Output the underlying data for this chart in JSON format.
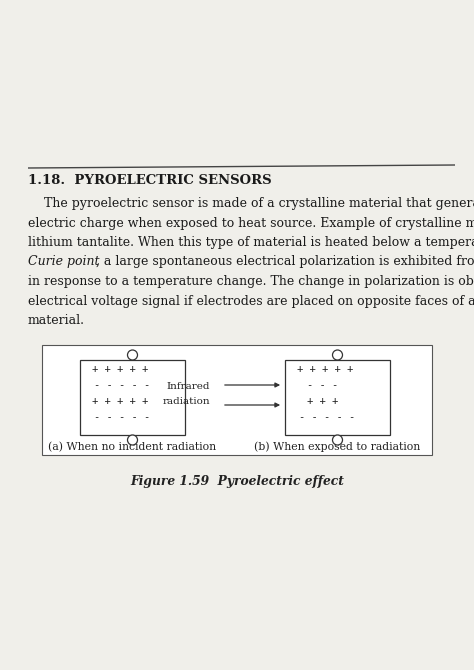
{
  "section_number": "1.18.",
  "section_title": "PYROELECTRIC SENSORS",
  "line1": "    The pyroelectric sensor is made of a crystalline material that generates a surface",
  "line2": "electric charge when exposed to heat source. Example of crystalline material is",
  "line3": "lithium tantalite. When this type of material is heated below a temperature known as",
  "line4_italic": "Curie point",
  "line4_rest": ", a large spontaneous electrical polarization is exhibited from the material",
  "line5": "in response to a temperature change. The change in polarization is observed as an",
  "line6": "electrical voltage signal if electrodes are placed on opposite faces of a thin slice of the",
  "line7": "material.",
  "fig_label_a": "(a) When no incident radiation",
  "fig_label_b": "(b) When exposed to radiation",
  "infrared_label_1": "Infrared",
  "infrared_label_2": "radiation",
  "figure_caption": "Figure 1.59  Pyroelectric effect",
  "bg_color": "#f0efea",
  "text_color": "#1a1a1a",
  "box_color": "#333333",
  "title_fontsize": 9.5,
  "body_fontsize": 9.0,
  "caption_fontsize": 8.8,
  "charge_fontsize": 7.5,
  "label_fontsize": 7.8
}
